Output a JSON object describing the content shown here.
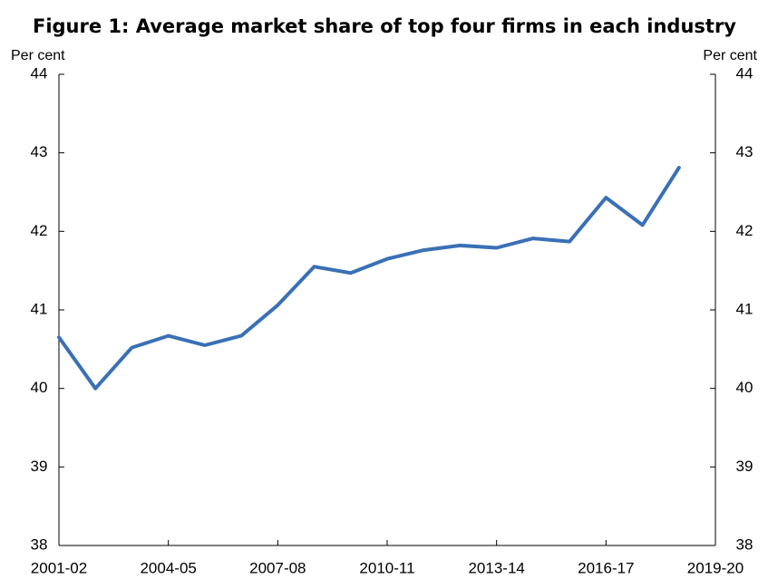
{
  "chart_data": {
    "type": "line",
    "title": "Figure 1: Average market share of top four firms in each industry",
    "y_label": "Per cent",
    "y2_label": "Per cent",
    "categories": [
      "2001-02",
      null,
      null,
      "2004-05",
      null,
      null,
      "2007-08",
      null,
      null,
      "2010-11",
      null,
      null,
      "2013-14",
      null,
      null,
      "2016-17",
      null,
      null,
      "2019-20"
    ],
    "series": [
      {
        "name": "Average market share",
        "color": "#3a70b5",
        "values": [
          40.65,
          40.0,
          40.52,
          40.67,
          40.55,
          40.67,
          41.06,
          41.55,
          41.47,
          41.65,
          41.76,
          41.82,
          41.79,
          41.91,
          41.87,
          42.43,
          42.08,
          42.81,
          null
        ]
      }
    ],
    "ylim": [
      38,
      44
    ],
    "yticks": [
      38,
      39,
      40,
      41,
      42,
      43,
      44
    ],
    "y2lim": [
      38,
      44
    ],
    "y2ticks": [
      38,
      39,
      40,
      41,
      42,
      43,
      44
    ],
    "grid": false
  }
}
